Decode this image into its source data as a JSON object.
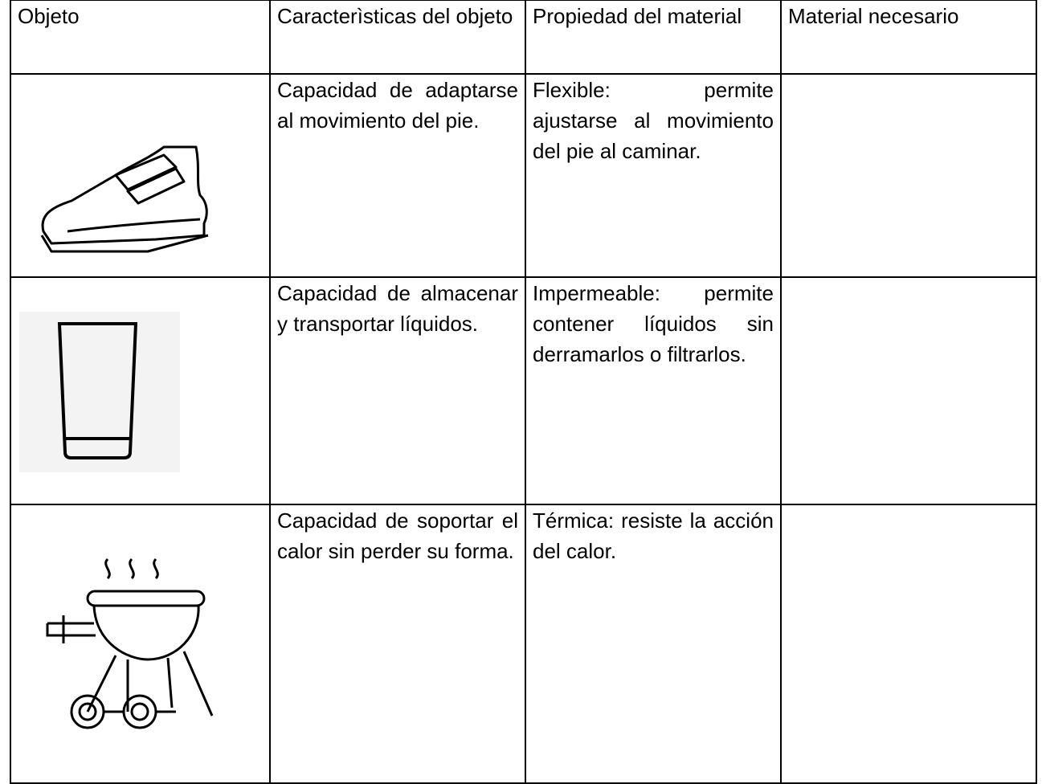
{
  "table": {
    "header": [
      "Objeto",
      "Caracterìsticas del objeto",
      "Propiedad del material",
      "Material necesario"
    ],
    "rows": [
      {
        "features": "Capacidad de adaptarse al movimiento del pie.",
        "property": "Flexible: permite ajustarse al movimiento del pie al caminar."
      },
      {
        "features": "Capacidad de almacenar y transportar líquidos.",
        "property": "Impermeable: permite contener líquidos sin derramarlos o filtrarlos."
      },
      {
        "features": "Capacidad de soportar el calor sin perder su forma.",
        "property": "Térmica: resiste la acción del calor."
      }
    ]
  }
}
